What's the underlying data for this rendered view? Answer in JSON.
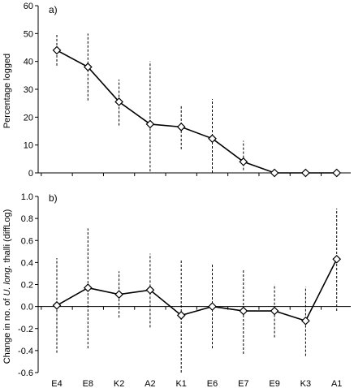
{
  "chart_data": [
    {
      "panel_label": "a)",
      "type": "line",
      "ylabel": "Percentage logged",
      "ylim": [
        0,
        60
      ],
      "yticks": [
        0,
        10,
        20,
        30,
        40,
        50,
        60
      ],
      "categories": [
        "E4",
        "E8",
        "K2",
        "A2",
        "K1",
        "E6",
        "E7",
        "E9",
        "K3",
        "A1"
      ],
      "values": [
        44,
        38,
        25.5,
        17.5,
        16.5,
        12.3,
        4,
        0,
        0,
        0
      ],
      "error_low": [
        38.5,
        26,
        17,
        0.5,
        8.5,
        0,
        1,
        0,
        0,
        0
      ],
      "error_high": [
        49.5,
        50,
        33.5,
        40,
        24.5,
        26.5,
        11.5,
        0,
        0,
        0
      ],
      "marker": "diamond",
      "errorbar_style": "dashed",
      "grid": false,
      "xtick_labels_shown": false
    },
    {
      "panel_label": "b)",
      "type": "line",
      "ylabel_parts": [
        "Change in no. of ",
        "U. long.",
        " thalli (diffLog)"
      ],
      "ylim": [
        -0.6,
        1.0
      ],
      "yticks": [
        "-0.6",
        "-0.4",
        "-0.2",
        "0.0",
        "0.2",
        "0.4",
        "0.6",
        "0.8",
        "1.0"
      ],
      "categories": [
        "E4",
        "E8",
        "K2",
        "A2",
        "K1",
        "E6",
        "E7",
        "E9",
        "K3",
        "A1"
      ],
      "values": [
        0.01,
        0.17,
        0.11,
        0.15,
        -0.08,
        0.0,
        -0.04,
        -0.04,
        -0.13,
        0.43
      ],
      "error_low": [
        -0.42,
        -0.38,
        -0.1,
        -0.19,
        -0.6,
        -0.38,
        -0.43,
        -0.28,
        -0.45,
        -0.04
      ],
      "error_high": [
        0.44,
        0.71,
        0.32,
        0.48,
        0.43,
        0.38,
        0.34,
        0.2,
        0.18,
        0.89
      ],
      "marker": "diamond",
      "errorbar_style": "dashed",
      "grid": false,
      "xtick_labels_shown": true
    }
  ]
}
